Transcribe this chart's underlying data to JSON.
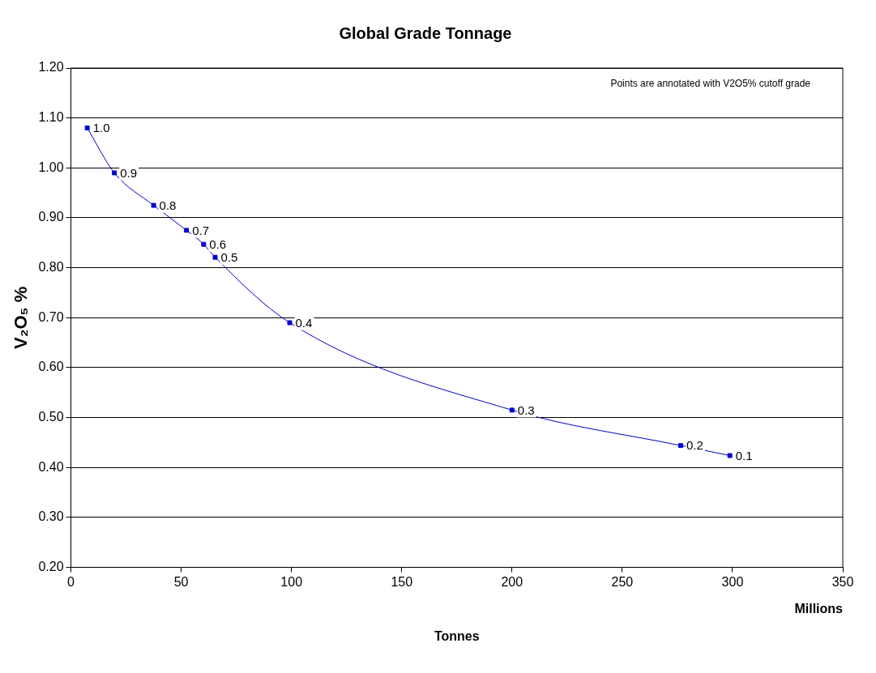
{
  "chart_data": {
    "type": "line",
    "title": "Global Grade Tonnage",
    "xlabel": "Tonnes",
    "ylabel": "V₂O₅ %",
    "annotations": [
      "Points are annotated with V2O5% cutoff grade",
      "Millions",
      {
        "text": "1.0",
        "x": 7.4,
        "y": 1.08
      },
      {
        "text": "0.9",
        "x": 19.7,
        "y": 0.99
      },
      {
        "text": "0.8",
        "x": 37.5,
        "y": 0.925
      },
      {
        "text": "0.7",
        "x": 52.4,
        "y": 0.875
      },
      {
        "text": "0.6",
        "x": 60.2,
        "y": 0.847
      },
      {
        "text": "0.5",
        "x": 65.4,
        "y": 0.821
      },
      {
        "text": "0.4",
        "x": 99.2,
        "y": 0.69
      },
      {
        "text": "0.3",
        "x": 200,
        "y": 0.515
      },
      {
        "text": "0.2",
        "x": 276.5,
        "y": 0.444
      },
      {
        "text": "0.1",
        "x": 298.8,
        "y": 0.424
      }
    ],
    "x": [
      7.4,
      19.7,
      37.5,
      52.4,
      60.2,
      65.4,
      99.2,
      200,
      276.5,
      298.8
    ],
    "series": [
      {
        "color": "#0000cc",
        "values": [
          1.08,
          0.99,
          0.925,
          0.875,
          0.847,
          0.821,
          0.69,
          0.515,
          0.444,
          0.424
        ]
      }
    ],
    "xlim": [
      0,
      350
    ],
    "xticks": [
      0,
      50,
      100,
      150,
      200,
      250,
      300,
      350
    ],
    "ylim": [
      0.2,
      1.2
    ],
    "yticks": [
      {
        "value": 0.2,
        "label": "0.20"
      },
      {
        "value": 0.3,
        "label": "0.30"
      },
      {
        "value": 0.4,
        "label": "0.40"
      },
      {
        "value": 0.5,
        "label": "0.50"
      },
      {
        "value": 0.6,
        "label": "0.60"
      },
      {
        "value": 0.7,
        "label": "0.70"
      },
      {
        "value": 0.8,
        "label": "0.80"
      },
      {
        "value": 0.9,
        "label": "0.90"
      },
      {
        "value": 1.0,
        "label": "1.00"
      },
      {
        "value": 1.1,
        "label": "1.10"
      },
      {
        "value": 1.2,
        "label": "1.20"
      }
    ],
    "grid": "y",
    "marker": "square",
    "line_style": "solid"
  }
}
